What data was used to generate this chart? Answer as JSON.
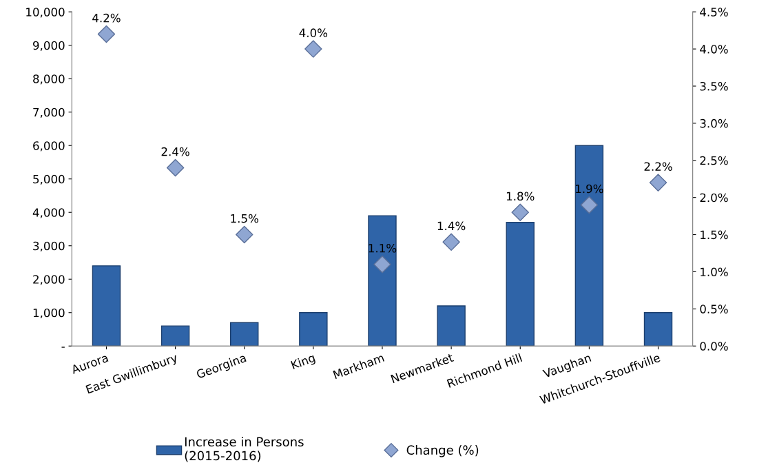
{
  "chart_data": {
    "type": "bar",
    "categories": [
      "Aurora",
      "East Gwillimbury",
      "Georgina",
      "King",
      "Markham",
      "Newmarket",
      "Richmond Hill",
      "Vaughan",
      "Whitchurch-Stouffville"
    ],
    "series": [
      {
        "name": "Increase in Persons\n(2015-2016)",
        "color": "#2f64a8",
        "values": [
          2400,
          600,
          700,
          1000,
          3900,
          1200,
          3700,
          6000,
          1000
        ]
      },
      {
        "name": "Change (%)",
        "type": "scatter",
        "axis": "y2",
        "color": "#8fa6d2",
        "marker": "diamond",
        "values": [
          4.2,
          2.4,
          1.5,
          4.0,
          1.1,
          1.4,
          1.8,
          1.9,
          2.2
        ],
        "value_labels": [
          "4.2%",
          "2.4%",
          "1.5%",
          "4.0%",
          "1.1%",
          "1.4%",
          "1.8%",
          "1.9%",
          "2.2%"
        ]
      }
    ],
    "ylim": [
      0,
      10000
    ],
    "yticks": [
      {
        "value": 0,
        "label": "-"
      },
      {
        "value": 1000,
        "label": "1,000"
      },
      {
        "value": 2000,
        "label": "2,000"
      },
      {
        "value": 3000,
        "label": "3,000"
      },
      {
        "value": 4000,
        "label": "4,000"
      },
      {
        "value": 5000,
        "label": "5,000"
      },
      {
        "value": 6000,
        "label": "6,000"
      },
      {
        "value": 7000,
        "label": "7,000"
      },
      {
        "value": 8000,
        "label": "8,000"
      },
      {
        "value": 9000,
        "label": "9,000"
      },
      {
        "value": 10000,
        "label": "10,000"
      }
    ],
    "y2lim": [
      0,
      4.5
    ],
    "y2ticks": [
      {
        "value": 0,
        "label": "0.0%"
      },
      {
        "value": 0.5,
        "label": "0.5%"
      },
      {
        "value": 1.0,
        "label": "1.0%"
      },
      {
        "value": 1.5,
        "label": "1.5%"
      },
      {
        "value": 2.0,
        "label": "2.0%"
      },
      {
        "value": 2.5,
        "label": "2.5%"
      },
      {
        "value": 3.0,
        "label": "3.0%"
      },
      {
        "value": 3.5,
        "label": "3.5%"
      },
      {
        "value": 4.0,
        "label": "4.0%"
      },
      {
        "value": 4.5,
        "label": "4.5%"
      }
    ],
    "grid": false,
    "legend": "bottom"
  }
}
